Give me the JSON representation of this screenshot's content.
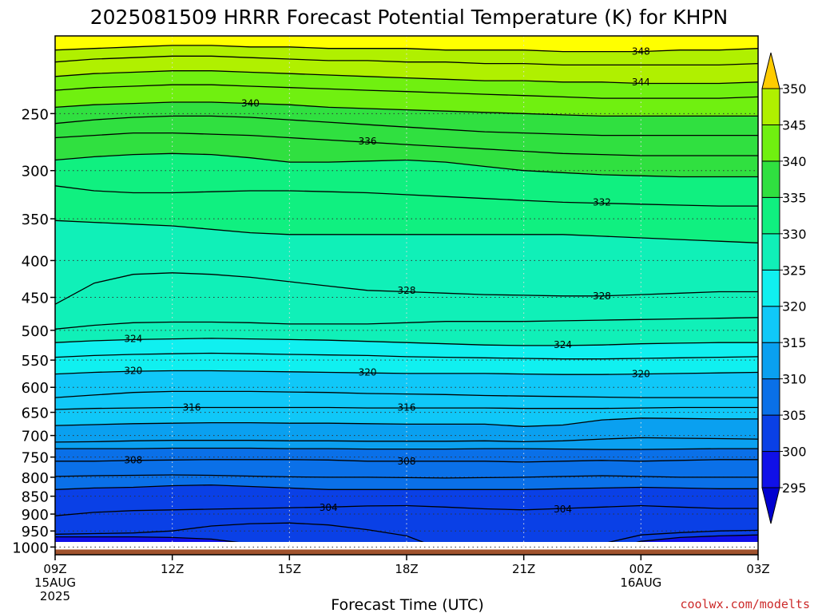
{
  "chart_data": {
    "type": "contour",
    "title": "2025081509 HRRR Forecast Potential Temperature (K) for KHPN",
    "xlabel": "Forecast Time (UTC)",
    "ylabel": "",
    "credit": "coolwx.com/modelts",
    "y_scale": "log",
    "y_inverted": true,
    "ylim": [
      1025,
      195
    ],
    "x_hours": [
      0,
      18
    ],
    "x_ticks": [
      {
        "hour": 0,
        "label": "09Z",
        "sub1": "15AUG",
        "sub2": "2025"
      },
      {
        "hour": 3,
        "label": "12Z",
        "sub1": "",
        "sub2": ""
      },
      {
        "hour": 6,
        "label": "15Z",
        "sub1": "",
        "sub2": ""
      },
      {
        "hour": 9,
        "label": "18Z",
        "sub1": "",
        "sub2": ""
      },
      {
        "hour": 12,
        "label": "21Z",
        "sub1": "",
        "sub2": ""
      },
      {
        "hour": 15,
        "label": "00Z",
        "sub1": "16AUG",
        "sub2": ""
      },
      {
        "hour": 18,
        "label": "03Z",
        "sub1": "",
        "sub2": ""
      }
    ],
    "y_ticks": [
      250,
      300,
      350,
      400,
      450,
      500,
      550,
      600,
      650,
      700,
      750,
      800,
      850,
      900,
      950,
      1000
    ],
    "ground_pressure": 1008,
    "colorbar": {
      "levels": [
        295,
        300,
        305,
        310,
        315,
        320,
        325,
        330,
        335,
        340,
        345,
        350
      ],
      "labels": [
        "295",
        "300",
        "305",
        "310",
        "315",
        "320",
        "325",
        "330",
        "335",
        "340",
        "345",
        "350"
      ],
      "colors": [
        "#1010e8",
        "#0a40e6",
        "#0a70e8",
        "#0aa0f0",
        "#10c8f8",
        "#10f0f0",
        "#10f0b8",
        "#10f080",
        "#30e040",
        "#70f010",
        "#b0f000",
        "#f0f010",
        "#ffff00"
      ],
      "under_color": "#0000d0",
      "over_color": "#ffcc00"
    },
    "isotherms": [
      {
        "theta": 300,
        "pressures": [
          968,
          968,
          968,
          970,
          975,
          990,
          1012,
          1012,
          1012,
          1012,
          1012,
          1012,
          1012,
          1012,
          1012,
          982,
          970,
          965,
          962
        ]
      },
      {
        "theta": 302,
        "pressures": [
          960,
          958,
          956,
          950,
          935,
          928,
          926,
          932,
          946,
          965,
          1012,
          1012,
          1012,
          1012,
          990,
          962,
          955,
          950,
          948
        ]
      },
      {
        "theta": 304,
        "pressures": [
          905,
          895,
          890,
          888,
          886,
          884,
          882,
          880,
          877,
          876,
          880,
          885,
          888,
          884,
          880,
          876,
          880,
          884,
          884
        ]
      },
      {
        "theta": 305,
        "pressures": [
          832,
          828,
          826,
          822,
          820,
          824,
          828,
          832,
          832,
          832,
          832,
          832,
          832,
          830,
          828,
          826,
          828,
          830,
          830
        ]
      },
      {
        "theta": 306,
        "pressures": [
          798,
          796,
          795,
          794,
          795,
          797,
          799,
          800,
          800,
          801,
          802,
          801,
          800,
          798,
          796,
          798,
          800,
          800,
          800
        ]
      },
      {
        "theta": 308,
        "pressures": [
          760,
          760,
          758,
          757,
          756,
          756,
          756,
          757,
          760,
          760,
          760,
          760,
          762,
          760,
          758,
          760,
          758,
          756,
          756
        ]
      },
      {
        "theta": 310,
        "pressures": [
          730,
          730,
          730,
          729,
          729,
          729,
          730,
          730,
          731,
          731,
          731,
          730,
          730,
          731,
          732,
          732,
          731,
          730,
          730
        ]
      },
      {
        "theta": 312,
        "pressures": [
          715,
          714,
          712,
          711,
          711,
          711,
          712,
          712,
          713,
          713,
          713,
          712,
          714,
          712,
          708,
          705,
          706,
          707,
          708
        ]
      },
      {
        "theta": 314,
        "pressures": [
          678,
          676,
          674,
          673,
          672,
          672,
          673,
          673,
          674,
          675,
          675,
          675,
          680,
          677,
          666,
          662,
          663,
          664,
          664
        ]
      },
      {
        "theta": 316,
        "pressures": [
          644,
          642,
          641,
          640,
          640,
          640,
          640,
          640,
          641,
          641,
          641,
          641,
          642,
          642,
          642,
          641,
          640,
          640,
          640
        ]
      },
      {
        "theta": 318,
        "pressures": [
          620,
          615,
          610,
          608,
          608,
          608,
          609,
          610,
          612,
          613,
          614,
          616,
          617,
          618,
          619,
          620,
          620,
          620,
          620
        ]
      },
      {
        "theta": 320,
        "pressures": [
          575,
          572,
          570,
          569,
          569,
          570,
          571,
          572,
          573,
          574,
          574,
          574,
          575,
          576,
          576,
          575,
          574,
          573,
          572
        ]
      },
      {
        "theta": 322,
        "pressures": [
          545,
          542,
          540,
          539,
          538,
          539,
          540,
          541,
          542,
          544,
          545,
          546,
          547,
          548,
          548,
          547,
          546,
          545,
          544
        ]
      },
      {
        "theta": 324,
        "pressures": [
          520,
          517,
          515,
          514,
          513,
          514,
          515,
          516,
          518,
          520,
          522,
          524,
          525,
          525,
          524,
          522,
          521,
          520,
          520
        ]
      },
      {
        "theta": 326,
        "pressures": [
          498,
          492,
          488,
          487,
          487,
          488,
          490,
          490,
          490,
          488,
          486,
          486,
          486,
          485,
          484,
          483,
          482,
          481,
          480
        ]
      },
      {
        "theta": 328,
        "pressures": [
          460,
          430,
          418,
          416,
          418,
          422,
          428,
          434,
          440,
          442,
          444,
          446,
          447,
          448,
          448,
          446,
          444,
          442,
          442
        ]
      },
      {
        "theta": 330,
        "pressures": [
          352,
          354,
          356,
          358,
          362,
          366,
          368,
          368,
          368,
          368,
          368,
          368,
          368,
          368,
          370,
          372,
          374,
          376,
          378
        ]
      },
      {
        "theta": 332,
        "pressures": [
          315,
          320,
          322,
          322,
          321,
          320,
          320,
          321,
          322,
          324,
          326,
          328,
          330,
          332,
          333,
          334,
          335,
          336,
          336
        ]
      },
      {
        "theta": 334,
        "pressures": [
          290,
          287,
          285,
          284,
          285,
          288,
          292,
          292,
          291,
          290,
          292,
          296,
          300,
          302,
          304,
          305,
          306,
          306,
          306
        ]
      },
      {
        "theta": 336,
        "pressures": [
          270,
          268,
          266,
          266,
          267,
          268,
          270,
          272,
          274,
          276,
          278,
          280,
          282,
          284,
          285,
          286,
          286,
          286,
          286
        ]
      },
      {
        "theta": 338,
        "pressures": [
          258,
          255,
          253,
          252,
          252,
          253,
          255,
          257,
          259,
          261,
          263,
          265,
          266,
          267,
          268,
          268,
          268,
          268,
          268
        ]
      },
      {
        "theta": 340,
        "pressures": [
          245,
          243,
          242,
          241,
          241,
          242,
          243,
          245,
          246,
          247,
          248,
          249,
          250,
          251,
          252,
          252,
          252,
          252,
          252
        ]
      },
      {
        "theta": 342,
        "pressures": [
          232,
          230,
          229,
          228,
          228,
          229,
          230,
          231,
          232,
          233,
          234,
          235,
          236,
          237,
          238,
          238,
          238,
          238,
          237
        ]
      },
      {
        "theta": 344,
        "pressures": [
          222,
          220,
          219,
          218,
          218,
          219,
          220,
          221,
          222,
          223,
          224,
          225,
          225,
          226,
          226,
          227,
          227,
          227,
          226
        ]
      },
      {
        "theta": 346,
        "pressures": [
          212,
          210,
          209,
          208,
          208,
          209,
          210,
          211,
          211,
          212,
          212,
          213,
          213,
          214,
          214,
          214,
          214,
          214,
          213
        ]
      },
      {
        "theta": 348,
        "pressures": [
          204,
          203,
          202,
          201,
          201,
          202,
          202,
          203,
          203,
          203,
          204,
          204,
          204,
          205,
          205,
          205,
          204,
          204,
          203
        ]
      }
    ],
    "contour_labels": [
      {
        "text": "348",
        "hour": 15.0,
        "pressure": 205
      },
      {
        "text": "344",
        "hour": 15.0,
        "pressure": 226
      },
      {
        "text": "340",
        "hour": 5.0,
        "pressure": 242
      },
      {
        "text": "336",
        "hour": 8.0,
        "pressure": 273
      },
      {
        "text": "332",
        "hour": 14.0,
        "pressure": 332
      },
      {
        "text": "328",
        "hour": 9.0,
        "pressure": 440
      },
      {
        "text": "328",
        "hour": 14.0,
        "pressure": 448
      },
      {
        "text": "324",
        "hour": 2.0,
        "pressure": 514
      },
      {
        "text": "324",
        "hour": 13.0,
        "pressure": 524
      },
      {
        "text": "320",
        "hour": 2.0,
        "pressure": 569
      },
      {
        "text": "320",
        "hour": 8.0,
        "pressure": 572
      },
      {
        "text": "320",
        "hour": 15.0,
        "pressure": 575
      },
      {
        "text": "316",
        "hour": 3.5,
        "pressure": 640
      },
      {
        "text": "316",
        "hour": 9.0,
        "pressure": 640
      },
      {
        "text": "308",
        "hour": 2.0,
        "pressure": 757
      },
      {
        "text": "308",
        "hour": 9.0,
        "pressure": 760
      },
      {
        "text": "304",
        "hour": 7.0,
        "pressure": 882
      },
      {
        "text": "304",
        "hour": 13.0,
        "pressure": 886
      }
    ]
  }
}
